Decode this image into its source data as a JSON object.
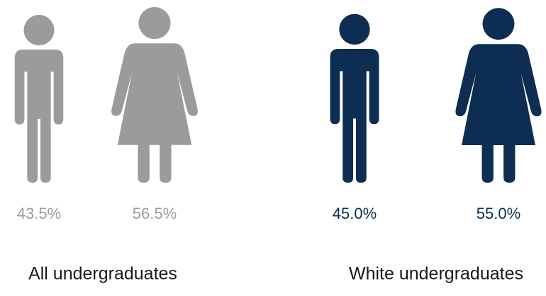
{
  "chart_data": [
    {
      "type": "pictogram",
      "title": "All undergraduates",
      "values": [
        43.5,
        56.5
      ],
      "value_labels": [
        "43.5%",
        "56.5%"
      ],
      "color": "#9b9b9b"
    },
    {
      "type": "pictogram",
      "title": "White undergraduates",
      "values": [
        45.0,
        55.0
      ],
      "value_labels": [
        "45.0%",
        "55.0%"
      ],
      "color": "#0d2d52"
    }
  ]
}
